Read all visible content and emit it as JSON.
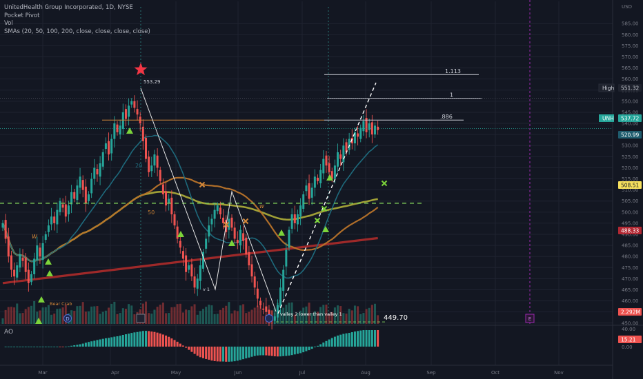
{
  "legend": {
    "title": "UnitedHealth Group Incorporated, 1D, NYSE",
    "lines": [
      "Pocket Pivot",
      "Vol",
      "SMAs (20, 50, 100, 200, close, close, close, close)"
    ]
  },
  "ao_label": "AO",
  "price_scale": {
    "currency": "USD",
    "min": 449,
    "max": 595,
    "ticks": [
      585,
      580,
      575,
      570,
      565,
      560,
      555,
      550,
      545,
      540,
      535,
      530,
      525,
      520,
      515,
      510,
      505,
      500,
      495,
      490,
      485,
      480,
      475,
      470,
      465,
      460,
      455,
      450
    ]
  },
  "ao_scale": {
    "ticks": [
      "40.00",
      "0.00"
    ]
  },
  "time_axis": {
    "labels": [
      "Mar",
      "Apr",
      "May",
      "Jun",
      "Jul",
      "Aug",
      "Sep",
      "Oct",
      "Nov"
    ]
  },
  "price_tags": [
    {
      "label": "High",
      "value": "551.32",
      "bg": "#1e222d",
      "fg": "#d1d4dc",
      "border": "#2a2e39"
    },
    {
      "label": "UNH",
      "value": "537.72",
      "bg": "#26a69a",
      "fg": "#ffffff"
    },
    {
      "label": "",
      "value": "520.99",
      "bg": "#1f5c6e",
      "fg": "#ffffff"
    },
    {
      "label": "",
      "value": "508.51",
      "bg": "#f6e05e",
      "fg": "#131722"
    },
    {
      "label": "",
      "value": "488.33",
      "bg": "#b22833",
      "fg": "#ffffff"
    },
    {
      "label": "",
      "value": "2.292M",
      "bg": "#ef5350",
      "fg": "#ffffff"
    },
    {
      "label": "",
      "value": "15.21",
      "bg": "#ef5350",
      "fg": "#ffffff"
    }
  ],
  "annotations": {
    "peak_label": "553.29",
    "low_label": "449.70",
    "fib_levels": [
      "1.113",
      "1",
      ".886"
    ],
    "valley_label": "v 1",
    "valley_text": "valley 2 lower than valley 1",
    "bear_crab": "Bear Crab",
    "sma20": "20",
    "sma50": "50",
    "w_marks": [
      "W",
      "W"
    ],
    "event_d": "D",
    "event_e": "E"
  },
  "colors": {
    "up": "#26a69a",
    "down": "#ef5350",
    "sma20": "#1f6f82",
    "sma50": "#b8732a",
    "sma100": "#a8a838",
    "sma200": "#a52a2a",
    "dashed_green": "#7cc95a",
    "grid": "#1f2330"
  },
  "chart_data": {
    "type": "candlestick",
    "symbol": "UNH",
    "interval": "1D",
    "y_range": [
      449,
      595
    ],
    "approximate": true,
    "key_levels": {
      "high": 551.32,
      "last": 537.72,
      "sma20": 520.99,
      "sma50": 508.51,
      "sma200": 488.33,
      "peak": 553.29,
      "low": 449.7,
      "horizontal_resistance": 541.5,
      "support_dashed": 504
    },
    "closes": [
      495,
      488,
      480,
      474,
      471,
      476,
      481,
      478,
      473,
      468,
      472,
      479,
      485,
      480,
      486,
      490,
      494,
      498,
      495,
      501,
      505,
      502,
      498,
      503,
      509,
      506,
      512,
      516,
      510,
      504,
      508,
      515,
      520,
      517,
      522,
      527,
      531,
      526,
      533,
      540,
      536,
      539,
      545,
      542,
      548,
      550,
      547,
      544,
      540,
      532,
      524,
      518,
      521,
      526,
      520,
      514,
      508,
      503,
      506,
      499,
      494,
      488,
      484,
      479,
      473,
      476,
      471,
      466,
      470,
      476,
      482,
      488,
      494,
      497,
      501,
      503,
      499,
      495,
      491,
      497,
      493,
      488,
      486,
      492,
      487,
      481,
      476,
      471,
      466,
      461,
      458,
      456,
      455,
      452,
      451,
      453,
      458,
      466,
      474,
      483,
      492,
      499,
      495,
      499,
      503,
      508,
      512,
      506,
      511,
      516,
      514,
      519,
      524,
      521,
      518,
      515,
      521,
      527,
      524,
      530,
      527,
      533,
      531,
      536,
      534,
      538,
      541,
      536,
      540,
      535,
      539,
      537
    ]
  }
}
